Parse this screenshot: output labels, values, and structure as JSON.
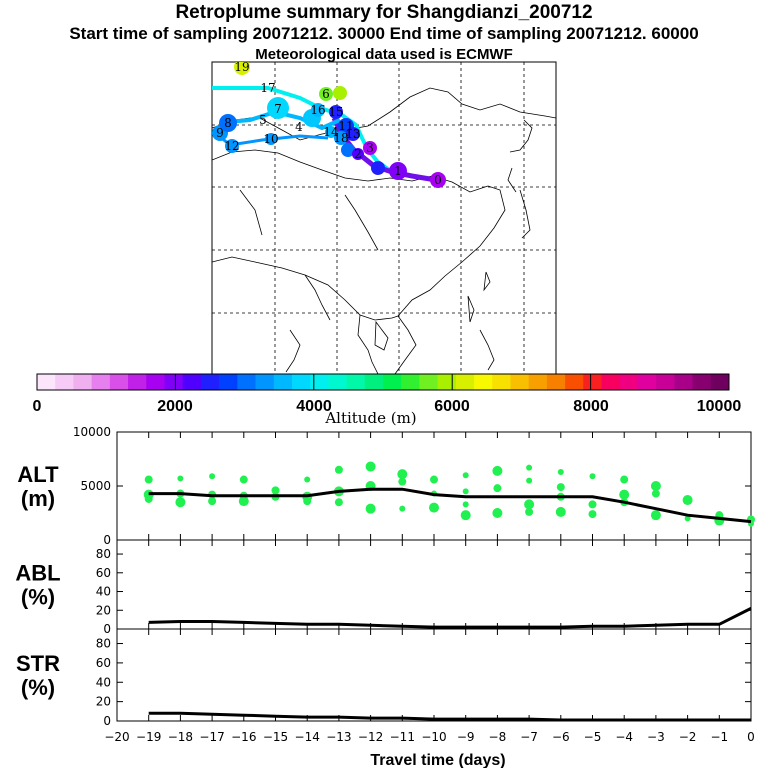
{
  "header": {
    "title": "Retroplume summary for Shangdianzi_200712",
    "subtitle": "Start time of sampling 20071212. 30000     End time of sampling 20071212. 60000",
    "met": "Meteorological data used is ECMWF"
  },
  "map": {
    "trajectory_labels": [
      "0",
      "1",
      "2",
      "3",
      "4",
      "5",
      "6",
      "7",
      "8",
      "9",
      "10",
      "11",
      "12",
      "13",
      "14",
      "15",
      "16",
      "17",
      "18",
      "19"
    ]
  },
  "colorbar": {
    "title": "Altitude (m)",
    "tick_labels": [
      "0",
      "2000",
      "4000",
      "6000",
      "8000",
      "10000"
    ],
    "range": [
      0,
      10000
    ],
    "colors": [
      "#fbe6fb",
      "#f6ccf6",
      "#f0b0f0",
      "#e680ee",
      "#d850e8",
      "#c020e8",
      "#a800f0",
      "#8000f8",
      "#5000ff",
      "#2020ff",
      "#0040ff",
      "#0070ff",
      "#0095ff",
      "#00b8ff",
      "#00d8ff",
      "#00f0f0",
      "#00f8d0",
      "#00f8a8",
      "#00f080",
      "#00f050",
      "#30f030",
      "#70f020",
      "#a8f000",
      "#d8f000",
      "#f8f800",
      "#f8e000",
      "#f8c000",
      "#f8a000",
      "#f88000",
      "#f85000",
      "#f82020",
      "#f80060",
      "#f00080",
      "#e000a0",
      "#c80098",
      "#a80088",
      "#880070",
      "#700060"
    ]
  },
  "chart_data": [
    {
      "type": "scatter",
      "panel": "ALT",
      "ylabel_lines": [
        "ALT",
        "(m)"
      ],
      "ylim": [
        0,
        10000
      ],
      "y_ticks": [
        0,
        5000,
        10000
      ],
      "y_tick_labels": [
        "0",
        "5000",
        "10000"
      ],
      "xlim": [
        -20,
        0
      ],
      "line": {
        "x": [
          -19,
          -18,
          -17,
          -16,
          -15,
          -14,
          -13,
          -12,
          -11,
          -10,
          -9,
          -8,
          -7,
          -6,
          -5,
          -4,
          -3,
          -2,
          -1,
          0
        ],
        "y": [
          4300,
          4300,
          4100,
          4100,
          4100,
          4100,
          4500,
          4700,
          4700,
          4200,
          4000,
          4000,
          4000,
          4000,
          4000,
          3500,
          2900,
          2300,
          2000,
          1700
        ]
      },
      "points": [
        [
          -19,
          5600
        ],
        [
          -19,
          4200
        ],
        [
          -19,
          3800
        ],
        [
          -18,
          5700
        ],
        [
          -18,
          4300
        ],
        [
          -18,
          3500
        ],
        [
          -17,
          5900
        ],
        [
          -17,
          4200
        ],
        [
          -17,
          3600
        ],
        [
          -16,
          5600
        ],
        [
          -16,
          4100
        ],
        [
          -16,
          3600
        ],
        [
          -15,
          4600
        ],
        [
          -15,
          4000
        ],
        [
          -14,
          5600
        ],
        [
          -14,
          4000
        ],
        [
          -14,
          3600
        ],
        [
          -13,
          6500
        ],
        [
          -13,
          4500
        ],
        [
          -13,
          3500
        ],
        [
          -12,
          6800
        ],
        [
          -12,
          5000
        ],
        [
          -12,
          2900
        ],
        [
          -11,
          6100
        ],
        [
          -11,
          5400
        ],
        [
          -11,
          2900
        ],
        [
          -10,
          5600
        ],
        [
          -10,
          4300
        ],
        [
          -10,
          3000
        ],
        [
          -9,
          6000
        ],
        [
          -9,
          4500
        ],
        [
          -9,
          3300
        ],
        [
          -9,
          2300
        ],
        [
          -8,
          6400
        ],
        [
          -8,
          4800
        ],
        [
          -8,
          2500
        ],
        [
          -7,
          6700
        ],
        [
          -7,
          5500
        ],
        [
          -7,
          3300
        ],
        [
          -7,
          2600
        ],
        [
          -6,
          6300
        ],
        [
          -6,
          4900
        ],
        [
          -6,
          4000
        ],
        [
          -6,
          2600
        ],
        [
          -5,
          5900
        ],
        [
          -5,
          3300
        ],
        [
          -5,
          2400
        ],
        [
          -4,
          5600
        ],
        [
          -4,
          4200
        ],
        [
          -4,
          3500
        ],
        [
          -3,
          5000
        ],
        [
          -3,
          4300
        ],
        [
          -3,
          2300
        ],
        [
          -2,
          3700
        ],
        [
          -2,
          2000
        ],
        [
          -1,
          2300
        ],
        [
          -1,
          1800
        ],
        [
          0,
          1900
        ],
        [
          0,
          1500
        ]
      ]
    },
    {
      "type": "line",
      "panel": "ABL",
      "ylabel_lines": [
        "ABL",
        "(%)"
      ],
      "ylim": [
        0,
        95
      ],
      "y_ticks": [
        0,
        20,
        40,
        60,
        80
      ],
      "y_tick_labels": [
        "0",
        "20",
        "40",
        "60",
        "80"
      ],
      "xlim": [
        -20,
        0
      ],
      "x": [
        -19,
        -18,
        -17,
        -16,
        -15,
        -14,
        -13,
        -12,
        -11,
        -10,
        -9,
        -8,
        -7,
        -6,
        -5,
        -4,
        -3,
        -2,
        -1,
        0
      ],
      "y": [
        7,
        8,
        8,
        7,
        6,
        5,
        5,
        4,
        3,
        2,
        2,
        2,
        2,
        2,
        3,
        3,
        4,
        5,
        5,
        22
      ]
    },
    {
      "type": "line",
      "panel": "STR",
      "ylabel_lines": [
        "STR",
        "(%)"
      ],
      "ylim": [
        0,
        95
      ],
      "y_ticks": [
        0,
        20,
        40,
        60,
        80
      ],
      "y_tick_labels": [
        "0",
        "20",
        "40",
        "60",
        "80"
      ],
      "xlim": [
        -20,
        0
      ],
      "xlabel": "Travel time (days)",
      "x_ticks": [
        -20,
        -19,
        -18,
        -17,
        -16,
        -15,
        -14,
        -13,
        -12,
        -11,
        -10,
        -9,
        -8,
        -7,
        -6,
        -5,
        -4,
        -3,
        -2,
        -1,
        0
      ],
      "x_tick_labels": [
        "−20",
        "−19",
        "−18",
        "−17",
        "−16",
        "−15",
        "−14",
        "−13",
        "−12",
        "−11",
        "−10",
        "−9",
        "−8",
        "−7",
        "−6",
        "−5",
        "−4",
        "−3",
        "−2",
        "−1",
        "0"
      ],
      "x": [
        -19,
        -18,
        -17,
        -16,
        -15,
        -14,
        -13,
        -12,
        -11,
        -10,
        -9,
        -8,
        -7,
        -6,
        -5,
        -4,
        -3,
        -2,
        -1,
        0
      ],
      "y": [
        8,
        8,
        7,
        6,
        5,
        4,
        4,
        3,
        3,
        2,
        2,
        2,
        2,
        1,
        1,
        1,
        1,
        1,
        1,
        1
      ]
    }
  ]
}
